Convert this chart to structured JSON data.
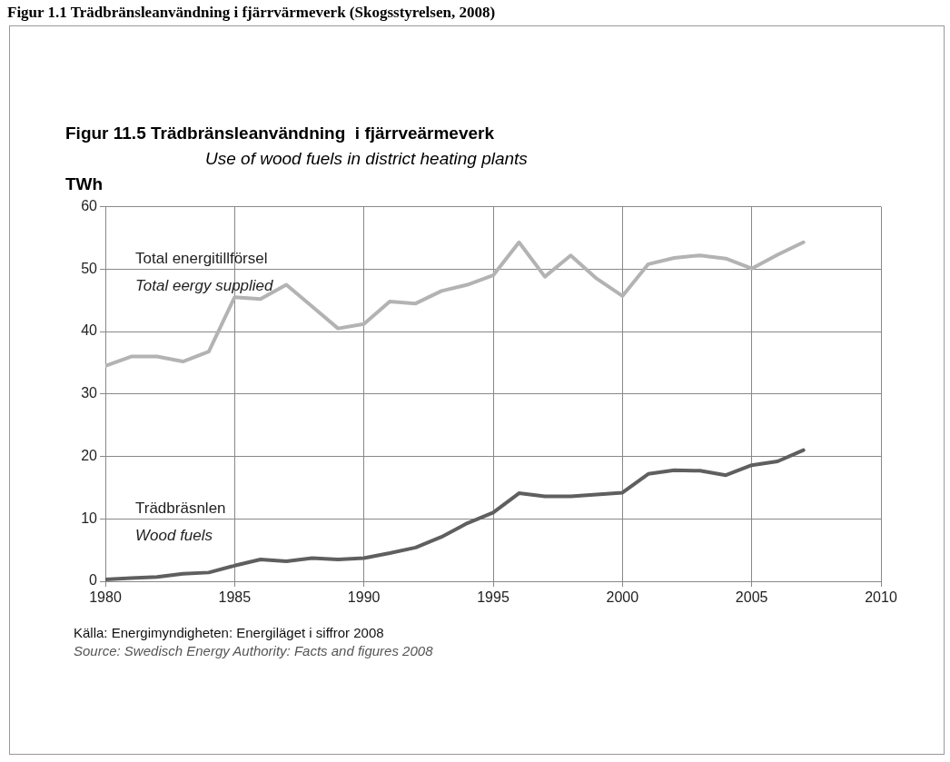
{
  "chart_data": {
    "type": "line",
    "title": "Figur 11.5 Trädbränsleanvändning  i fjärrveärmeverk",
    "subtitle": "Use of wood fuels in district heating plants",
    "ylabel": "TWh",
    "x": [
      1980,
      1981,
      1982,
      1983,
      1984,
      1985,
      1986,
      1987,
      1988,
      1989,
      1990,
      1991,
      1992,
      1993,
      1994,
      1995,
      1996,
      1997,
      1998,
      1999,
      2000,
      2001,
      2002,
      2003,
      2004,
      2005,
      2006,
      2007
    ],
    "series": [
      {
        "name": "Total energitillförsel\nTotal eergy supplied",
        "color": "#b3b3b3",
        "values": [
          34.5,
          36,
          36,
          35.2,
          36.8,
          45.5,
          45.2,
          47.5,
          44,
          40.5,
          41.2,
          44.8,
          44.5,
          46.5,
          47.5,
          49,
          54.3,
          48.8,
          52.2,
          48.5,
          45.7,
          50.8,
          51.8,
          52.2,
          51.7,
          50.1,
          52.3,
          54.3
        ]
      },
      {
        "name": "Trädbräsnlen\nWood fuels",
        "color": "#5f5f5f",
        "values": [
          0.3,
          0.5,
          0.7,
          1.2,
          1.4,
          2.5,
          3.5,
          3.2,
          3.7,
          3.5,
          3.7,
          4.5,
          5.4,
          7.1,
          9.3,
          11,
          14.1,
          13.6,
          13.6,
          13.9,
          14.2,
          17.2,
          17.8,
          17.7,
          17,
          18.6,
          19.2,
          21
        ]
      }
    ],
    "xlim": [
      1980,
      2010
    ],
    "xticks": [
      1980,
      1985,
      1990,
      1995,
      2000,
      2005,
      2010
    ],
    "ylim": [
      0,
      60
    ],
    "yticks": [
      0,
      10,
      20,
      30,
      40,
      50,
      60
    ],
    "grid": true,
    "legend": false,
    "marker": "none",
    "line_style": "solid",
    "annotations": [
      "Figur 1.1 Trädbränsleanvändning i fjärrvärmeverk (Skogsstyrelsen, 2008)",
      "Källa: Energimyndigheten: Energiläget i siffror 2008",
      "Source: Swedisch Energy Authority: Facts and figures 2008"
    ]
  }
}
